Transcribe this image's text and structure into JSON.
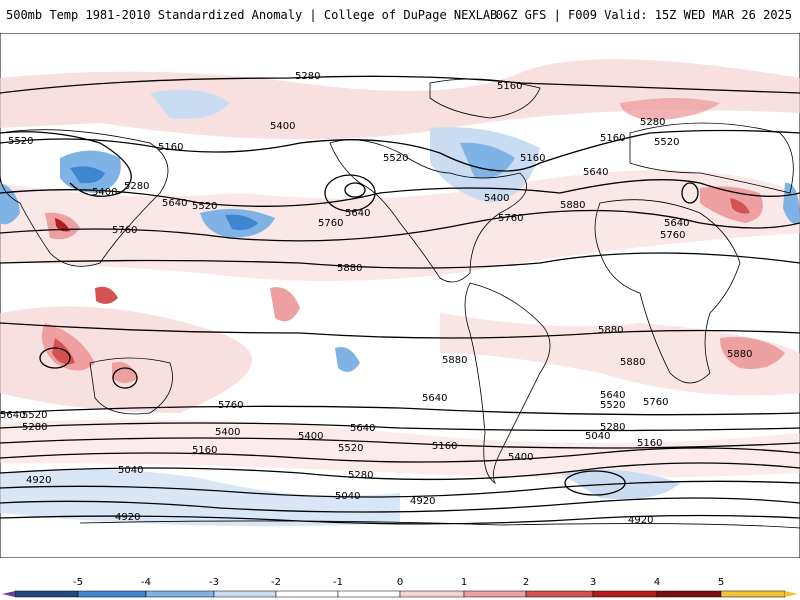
{
  "header": {
    "left_title": "500mb Temp 1981-2010 Standardized Anomaly | College of DuPage NEXLAB",
    "right_title": "06Z GFS | F009 Valid: 15Z WED MAR 26 2025"
  },
  "colors": {
    "neg5": "#6a3d9a",
    "neg4": "#24477e",
    "neg3": "#3f86d0",
    "neg2": "#7fb2e5",
    "neg1": "#c9dcf2",
    "neutral": "#ffffff",
    "pos1": "#f6d3d3",
    "pos2": "#eea0a0",
    "pos3": "#d45252",
    "pos4": "#b51b1b",
    "pos5": "#7c0d0d",
    "pos_max": "#f2c233",
    "contour": "#000000",
    "coast": "#000000"
  },
  "colorbar": {
    "labels": [
      "-5",
      "-4",
      "-3",
      "-2",
      "-1",
      "0",
      "1",
      "2",
      "3",
      "4",
      "5"
    ]
  },
  "contour_labels": [
    "5280",
    "5160",
    "5400",
    "5520",
    "5160",
    "5280",
    "5400",
    "5640",
    "5520",
    "5640",
    "5760",
    "5760",
    "5880",
    "5400",
    "5160",
    "5520",
    "5760",
    "5880",
    "5640",
    "5160",
    "5280",
    "5520",
    "5640",
    "5760",
    "5880",
    "5880",
    "5880",
    "5880",
    "5640",
    "5520",
    "5280",
    "5760",
    "5640",
    "5400",
    "5160",
    "5040",
    "4920",
    "4920",
    "5640",
    "5520",
    "5400",
    "5280",
    "5040",
    "5160",
    "5760",
    "5640",
    "5520",
    "5400",
    "5280",
    "5040",
    "5160",
    "4920",
    "4920"
  ]
}
